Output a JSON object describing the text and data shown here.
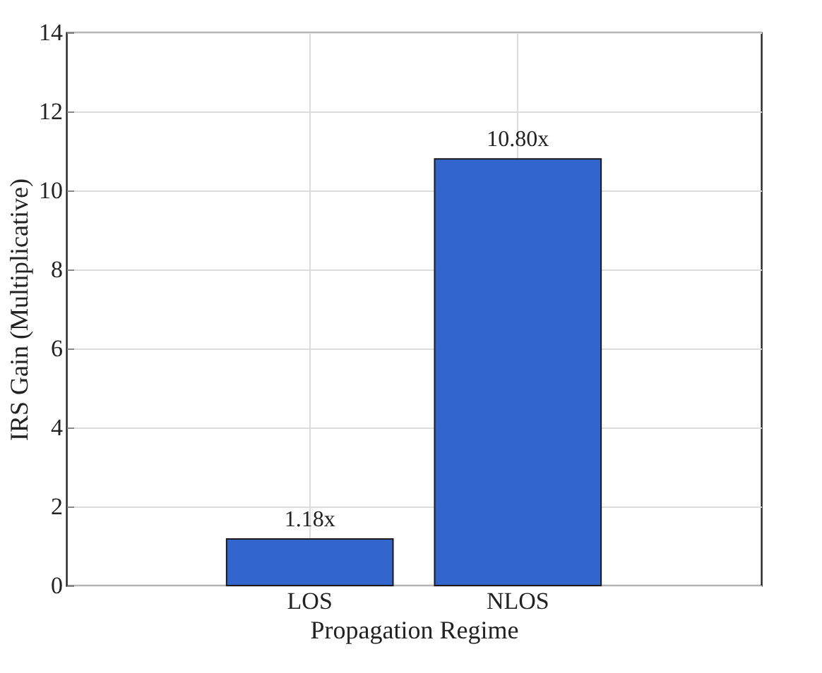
{
  "chart_data": {
    "type": "bar",
    "xlabel": "Propagation Regime",
    "ylabel": "IRS Gain (Multiplicative)",
    "categories": [
      "LOS",
      "NLOS"
    ],
    "values": [
      1.18,
      10.8
    ],
    "value_labels": [
      "1.18x",
      "10.80x"
    ],
    "color": "#3366cc",
    "ylim": [
      0,
      14
    ],
    "yticks": [
      0,
      2,
      4,
      6,
      8,
      10,
      12,
      14
    ],
    "grid": true
  }
}
